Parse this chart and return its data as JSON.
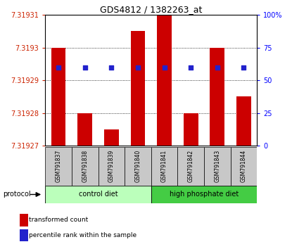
{
  "title": "GDS4812 / 1382263_at",
  "samples": [
    "GSM791837",
    "GSM791838",
    "GSM791839",
    "GSM791840",
    "GSM791841",
    "GSM791842",
    "GSM791843",
    "GSM791844"
  ],
  "bar_values": [
    7.3193,
    7.31928,
    7.319275,
    7.319305,
    7.31931,
    7.31928,
    7.3193,
    7.319285
  ],
  "percentile_values": [
    60,
    60,
    60,
    60,
    60,
    60,
    60,
    60
  ],
  "ylim_left": [
    7.31927,
    7.31931
  ],
  "ylim_right": [
    0,
    100
  ],
  "yticks_left": [
    7.31927,
    7.31928,
    7.31929,
    7.3193,
    7.31931
  ],
  "yticks_right": [
    0,
    25,
    50,
    75,
    100
  ],
  "bar_color": "#cc0000",
  "dot_color": "#2222cc",
  "control_diet_color": "#bbffbb",
  "high_phosphate_color": "#44cc44",
  "protocol_label": "protocol",
  "control_label": "control diet",
  "high_label": "high phosphate diet",
  "legend_bar": "transformed count",
  "legend_dot": "percentile rank within the sample",
  "bar_bottom": 7.31927
}
